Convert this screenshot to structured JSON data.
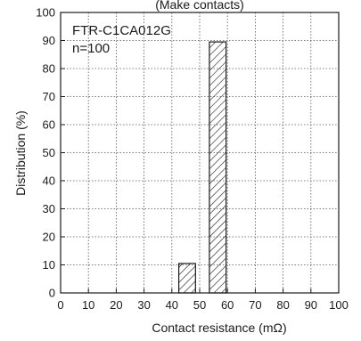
{
  "chart_data": {
    "type": "bar",
    "title": "(Make contacts)",
    "annotations": [
      "FTR-C1CA012G",
      "n=100"
    ],
    "xlabel": "Contact resistance (mΩ)",
    "ylabel": "Distribution (%)",
    "xlim": [
      0,
      100
    ],
    "ylim": [
      0,
      100
    ],
    "xticks": [
      0,
      10,
      20,
      30,
      40,
      50,
      60,
      70,
      80,
      90,
      100
    ],
    "yticks": [
      0,
      10,
      20,
      30,
      40,
      50,
      60,
      70,
      80,
      90,
      100
    ],
    "grid": true,
    "bars": [
      {
        "x_start": 42.5,
        "x_end": 48.5,
        "value": 10.5
      },
      {
        "x_start": 53.5,
        "x_end": 59.5,
        "value": 89.5
      }
    ],
    "bar_fill": "hatched",
    "colors": {
      "axis": "#1a1a1a",
      "grid": "#555555",
      "bar_stroke": "#1a1a1a"
    }
  }
}
